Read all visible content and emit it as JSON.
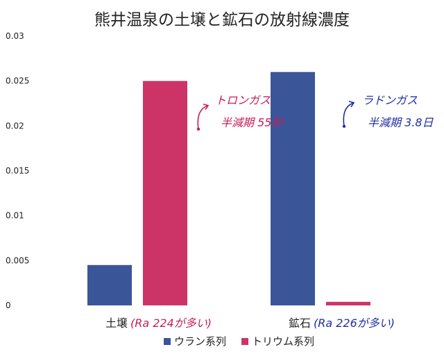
{
  "chart_data": {
    "type": "bar",
    "title": "熊井温泉の土壌と鉱石の放射線濃度",
    "categories": [
      "土壌",
      "鉱石"
    ],
    "series": [
      {
        "name": "ウラン系列",
        "values": [
          0.0045,
          0.026
        ],
        "color": "#3a5698"
      },
      {
        "name": "トリウム系列",
        "values": [
          0.025,
          0.0004
        ],
        "color": "#cc3468"
      }
    ],
    "ylim": [
      0,
      0.03
    ],
    "yticks": [
      "0",
      "0.005",
      "0.01",
      "0.015",
      "0.02",
      "0.025",
      "0.03"
    ],
    "grid": false,
    "legend_position": "bottom",
    "category_notes": [
      "(Ra 224が多い)",
      "(Ra 226が多い)"
    ],
    "annotations": [
      {
        "lines": [
          "トロンガス",
          "半減期 55秒"
        ],
        "color": "#c81d55",
        "icon": "curved-arrow-icon"
      },
      {
        "lines": [
          "ラドンガス",
          "半減期 3.8日"
        ],
        "color": "#1f2fa0",
        "icon": "curved-arrow-icon"
      }
    ]
  }
}
